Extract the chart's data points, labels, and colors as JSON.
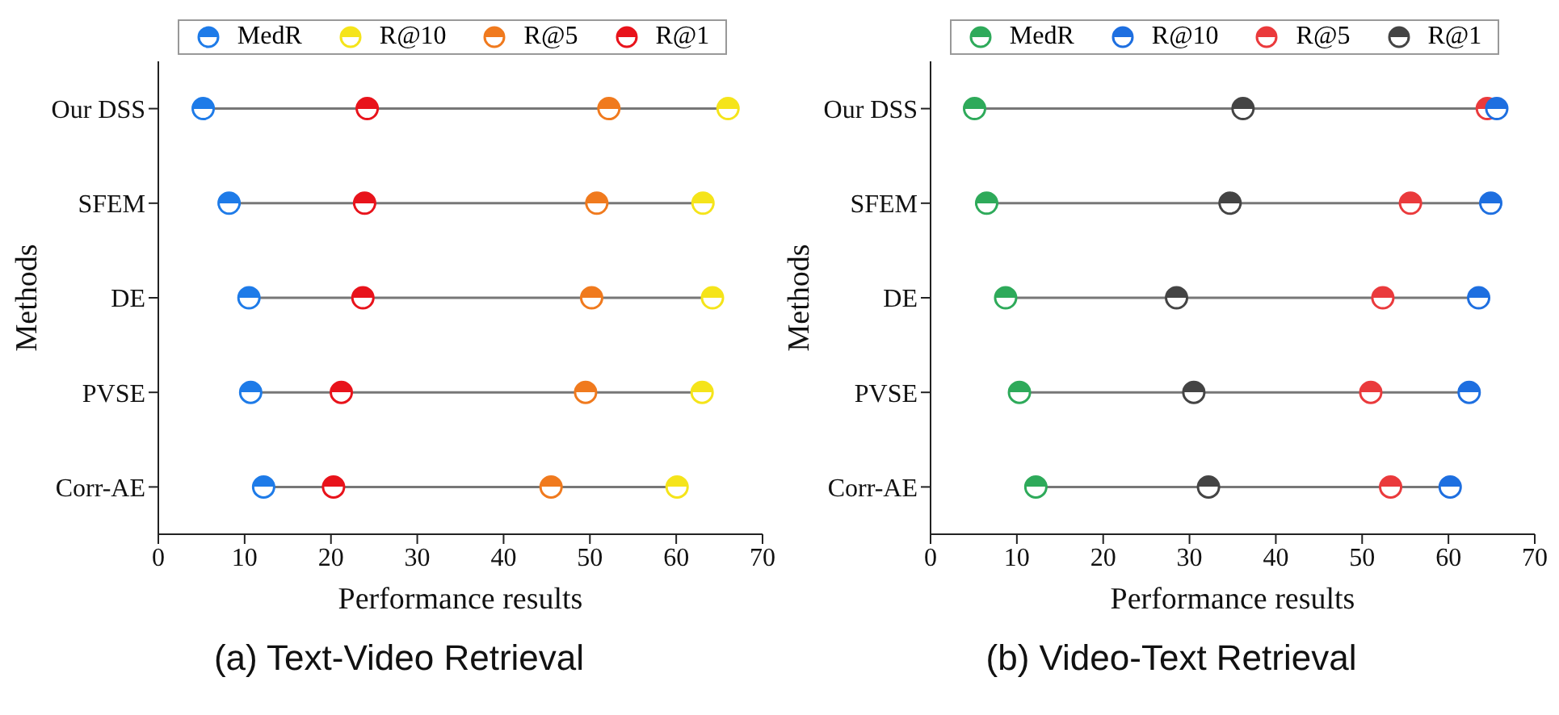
{
  "chart_data": [
    {
      "type": "scatter",
      "orientation": "horizontal",
      "title": "(a) Text-Video Retrieval",
      "xlabel": "Performance results",
      "ylabel": "Methods",
      "categories": [
        "Our DSS",
        "SFEM",
        "DE",
        "PVSE",
        "Corr-AE"
      ],
      "xlim": [
        0,
        70
      ],
      "xticks": [
        0,
        10,
        20,
        30,
        40,
        50,
        60,
        70
      ],
      "marker": "circle",
      "legend": "top",
      "series": [
        {
          "name": "MedR",
          "color": "#1e7be8",
          "values": [
            5.2,
            8.2,
            10.5,
            10.7,
            12.2
          ]
        },
        {
          "name": "R@10",
          "color": "#f5e41a",
          "values": [
            66.0,
            63.1,
            64.2,
            63.0,
            60.1
          ]
        },
        {
          "name": "R@5",
          "color": "#f07a1e",
          "values": [
            52.2,
            50.8,
            50.2,
            49.5,
            45.5
          ]
        },
        {
          "name": "R@1",
          "color": "#e8131b",
          "values": [
            24.2,
            23.9,
            23.7,
            21.2,
            20.3
          ]
        }
      ]
    },
    {
      "type": "scatter",
      "orientation": "horizontal",
      "title": "(b) Video-Text Retrieval",
      "xlabel": "Performance results",
      "ylabel": "Methods",
      "categories": [
        "Our DSS",
        "SFEM",
        "DE",
        "PVSE",
        "Corr-AE"
      ],
      "xlim": [
        0,
        70
      ],
      "xticks": [
        0,
        10,
        20,
        30,
        40,
        50,
        60,
        70
      ],
      "marker": "circle",
      "legend": "top",
      "series": [
        {
          "name": "MedR",
          "color": "#2eaa5a",
          "values": [
            5.1,
            6.5,
            8.7,
            10.3,
            12.2
          ]
        },
        {
          "name": "R@10",
          "color": "#1e6fe0",
          "values": [
            65.6,
            64.9,
            63.5,
            62.4,
            60.2
          ]
        },
        {
          "name": "R@5",
          "color": "#ea3a3c",
          "values": [
            64.5,
            55.6,
            52.4,
            51.0,
            53.3
          ]
        },
        {
          "name": "R@1",
          "color": "#444444",
          "values": [
            36.2,
            34.7,
            28.5,
            30.5,
            32.2
          ]
        }
      ]
    }
  ]
}
